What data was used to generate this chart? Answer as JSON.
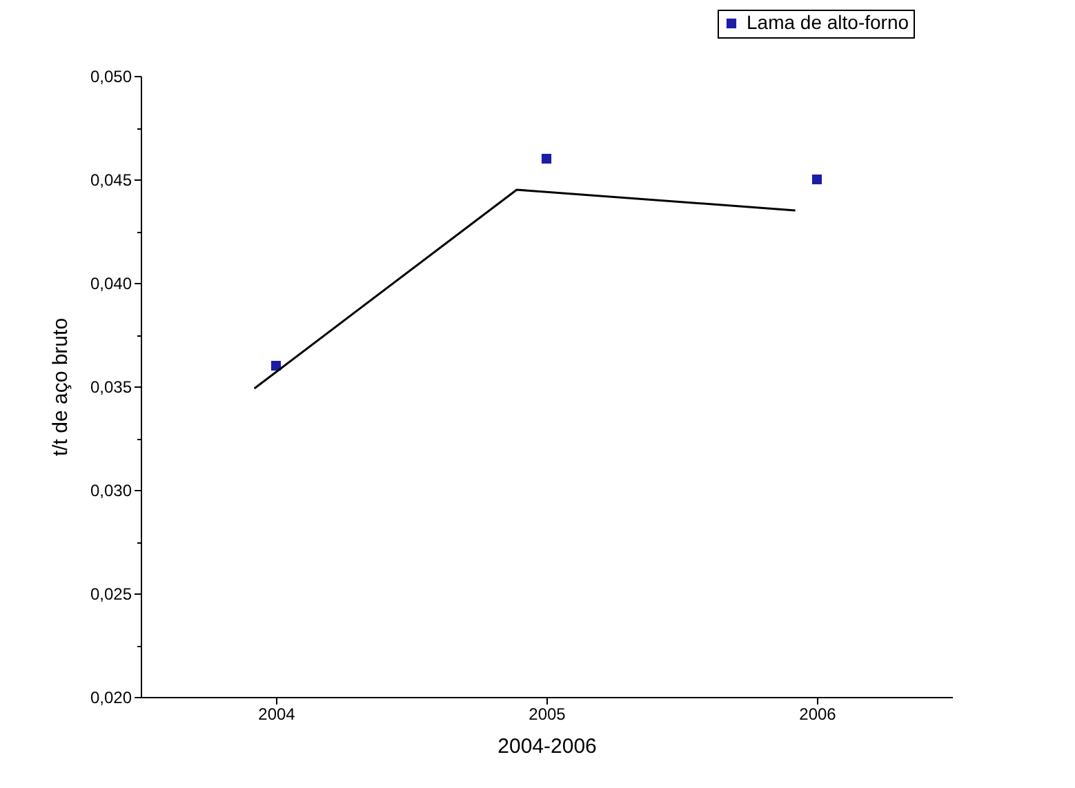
{
  "chart_data": {
    "type": "scatter",
    "xlabel": "2004-2006",
    "ylabel": "t/t de aço bruto",
    "x": [
      2004,
      2005,
      2006
    ],
    "series": [
      {
        "name": "Lama de alto-forno",
        "color": "#1c1ca8",
        "marker": "square",
        "values": [
          0.036,
          0.046,
          0.045
        ]
      },
      {
        "type": "line",
        "color": "#000000",
        "marker": "none",
        "x": [
          2003.92,
          2004.89,
          2005.92
        ],
        "values": [
          0.0349,
          0.0445,
          0.0435
        ]
      }
    ],
    "xlim": [
      2003.5,
      2006.5
    ],
    "xticks": [
      2004,
      2005,
      2006
    ],
    "ylim": [
      0.02,
      0.05
    ],
    "yticks": [
      {
        "value": 0.02,
        "label": "0,020"
      },
      {
        "value": 0.0225,
        "label": null
      },
      {
        "value": 0.025,
        "label": "0,025"
      },
      {
        "value": 0.0275,
        "label": null
      },
      {
        "value": 0.03,
        "label": "0,030"
      },
      {
        "value": 0.0325,
        "label": null
      },
      {
        "value": 0.035,
        "label": "0,035"
      },
      {
        "value": 0.0375,
        "label": null
      },
      {
        "value": 0.04,
        "label": "0,040"
      },
      {
        "value": 0.0425,
        "label": null
      },
      {
        "value": 0.045,
        "label": "0,045"
      },
      {
        "value": 0.0475,
        "label": null
      },
      {
        "value": 0.05,
        "label": "0,050"
      }
    ],
    "grid": false,
    "legend": "top right"
  }
}
